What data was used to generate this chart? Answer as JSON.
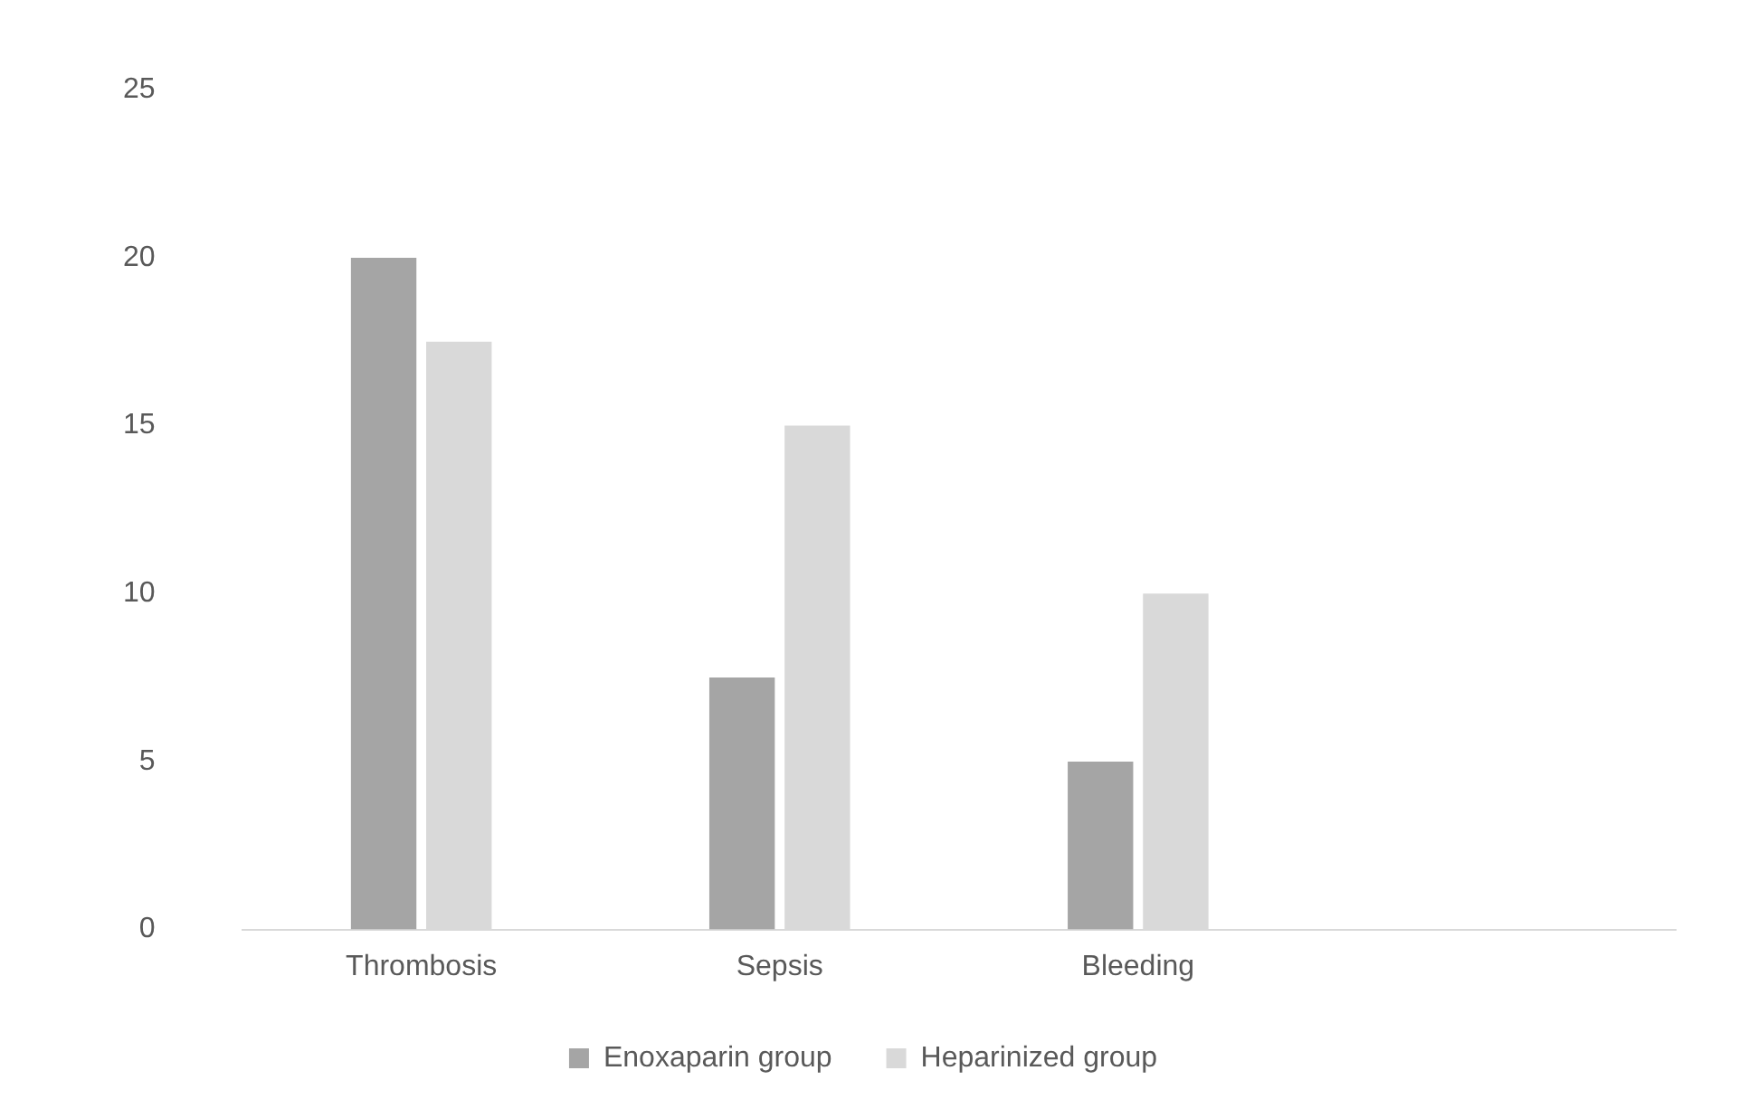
{
  "chart_data": {
    "type": "bar",
    "categories": [
      "Thrombosis",
      "Sepsis",
      "Bleeding",
      null
    ],
    "series": [
      {
        "name": "Enoxaparin group",
        "color": "#a5a5a5",
        "values": [
          20,
          7.5,
          5,
          null
        ]
      },
      {
        "name": "Heparinized group",
        "color": "#d9d9d9",
        "values": [
          17.5,
          15,
          10,
          null
        ]
      }
    ],
    "ylim": [
      0,
      25
    ],
    "yticks": [
      0,
      5,
      10,
      15,
      20,
      25
    ],
    "grid": false,
    "legend": "bottom"
  }
}
